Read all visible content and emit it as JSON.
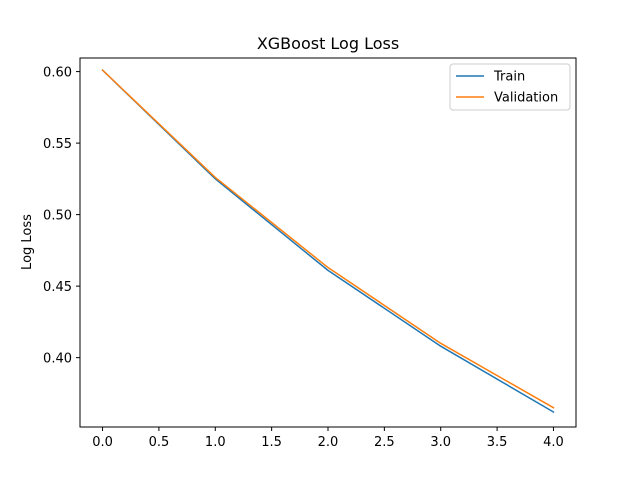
{
  "chart_data": {
    "type": "line",
    "title": "XGBoost Log Loss",
    "xlabel": "",
    "ylabel": "Log Loss",
    "xlim": [
      -0.2,
      4.2
    ],
    "ylim": [
      0.3515,
      0.6095
    ],
    "x_ticks": [
      "0.0",
      "0.5",
      "1.0",
      "1.5",
      "2.0",
      "2.5",
      "3.0",
      "3.5",
      "4.0"
    ],
    "y_ticks": [
      "0.40",
      "0.45",
      "0.50",
      "0.55",
      "0.60"
    ],
    "x": [
      0,
      1,
      2,
      3,
      4
    ],
    "series": [
      {
        "name": "Train",
        "color": "#1f77b4",
        "values": [
          0.601,
          0.525,
          0.461,
          0.408,
          0.362
        ]
      },
      {
        "name": "Validation",
        "color": "#ff7f0e",
        "values": [
          0.601,
          0.526,
          0.463,
          0.41,
          0.365
        ]
      }
    ],
    "legend_position": "top-right",
    "grid": false
  }
}
